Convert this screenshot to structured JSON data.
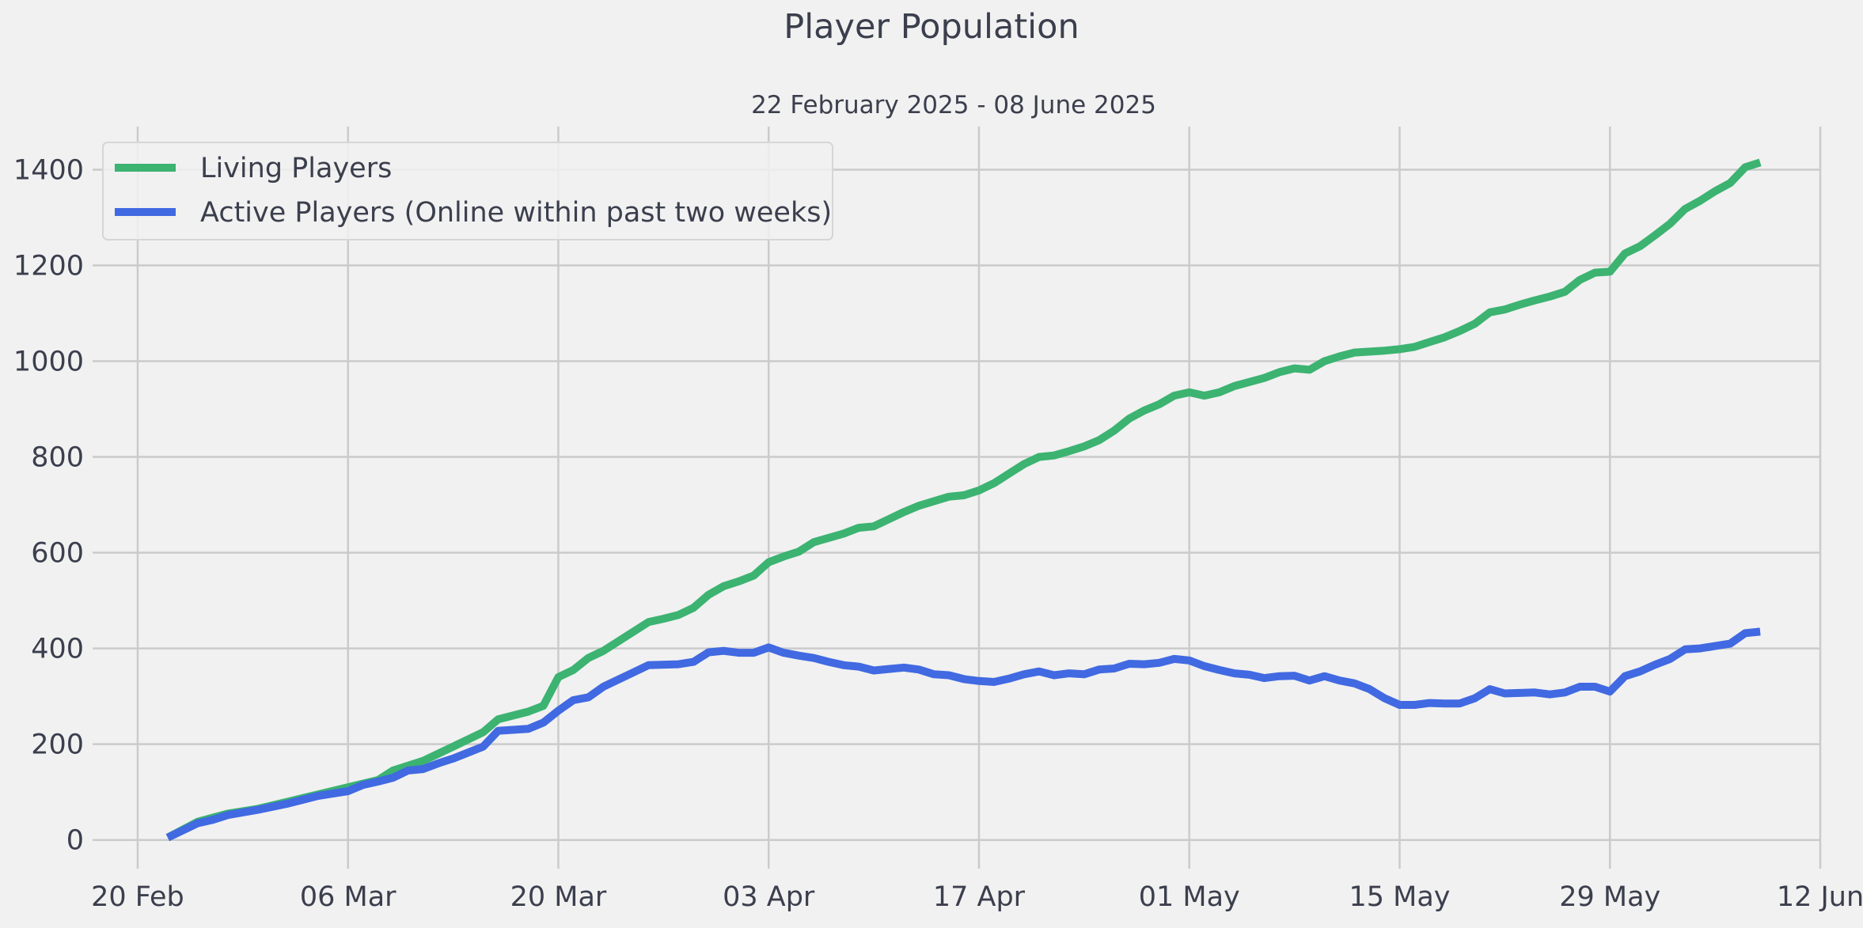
{
  "chart_data": {
    "type": "line",
    "title": "Player Population",
    "subtitle": "22 February 2025 - 08 June 2025",
    "xlabel": "",
    "ylabel": "",
    "x_axis": {
      "type": "date",
      "range": [
        "2025-02-17",
        "2025-06-12"
      ],
      "ticks": [
        {
          "date": "2025-02-20",
          "label": "20 Feb"
        },
        {
          "date": "2025-03-06",
          "label": "06 Mar"
        },
        {
          "date": "2025-03-20",
          "label": "20 Mar"
        },
        {
          "date": "2025-04-03",
          "label": "03 Apr"
        },
        {
          "date": "2025-04-17",
          "label": "17 Apr"
        },
        {
          "date": "2025-05-01",
          "label": "01 May"
        },
        {
          "date": "2025-05-15",
          "label": "15 May"
        },
        {
          "date": "2025-05-29",
          "label": "29 May"
        },
        {
          "date": "2025-06-12",
          "label": "12 Jun"
        }
      ]
    },
    "y_axis": {
      "range": [
        -60,
        1490
      ],
      "ticks": [
        {
          "value": 0,
          "label": "0"
        },
        {
          "value": 200,
          "label": "200"
        },
        {
          "value": 400,
          "label": "400"
        },
        {
          "value": 600,
          "label": "600"
        },
        {
          "value": 800,
          "label": "800"
        },
        {
          "value": 1000,
          "label": "1000"
        },
        {
          "value": 1200,
          "label": "1200"
        },
        {
          "value": 1400,
          "label": "1400"
        }
      ]
    },
    "grid": true,
    "legend_position": "top-left",
    "series": [
      {
        "name": "Living Players",
        "color": "#3cb371",
        "points": [
          [
            "2025-02-22",
            5
          ],
          [
            "2025-02-24",
            38
          ],
          [
            "2025-02-26",
            55
          ],
          [
            "2025-02-28",
            65
          ],
          [
            "2025-03-02",
            80
          ],
          [
            "2025-03-04",
            95
          ],
          [
            "2025-03-06",
            110
          ],
          [
            "2025-03-08",
            125
          ],
          [
            "2025-03-09",
            145
          ],
          [
            "2025-03-11",
            165
          ],
          [
            "2025-03-13",
            195
          ],
          [
            "2025-03-15",
            225
          ],
          [
            "2025-03-16",
            252
          ],
          [
            "2025-03-18",
            268
          ],
          [
            "2025-03-19",
            280
          ],
          [
            "2025-03-20",
            340
          ],
          [
            "2025-03-21",
            355
          ],
          [
            "2025-03-22",
            380
          ],
          [
            "2025-03-23",
            395
          ],
          [
            "2025-03-25",
            435
          ],
          [
            "2025-03-26",
            455
          ],
          [
            "2025-03-27",
            462
          ],
          [
            "2025-03-28",
            470
          ],
          [
            "2025-03-29",
            485
          ],
          [
            "2025-03-30",
            512
          ],
          [
            "2025-03-31",
            530
          ],
          [
            "2025-04-01",
            540
          ],
          [
            "2025-04-02",
            552
          ],
          [
            "2025-04-03",
            580
          ],
          [
            "2025-04-04",
            592
          ],
          [
            "2025-04-05",
            602
          ],
          [
            "2025-04-06",
            622
          ],
          [
            "2025-04-08",
            640
          ],
          [
            "2025-04-09",
            652
          ],
          [
            "2025-04-10",
            655
          ],
          [
            "2025-04-11",
            670
          ],
          [
            "2025-04-12",
            685
          ],
          [
            "2025-04-13",
            698
          ],
          [
            "2025-04-15",
            717
          ],
          [
            "2025-04-16",
            720
          ],
          [
            "2025-04-17",
            730
          ],
          [
            "2025-04-18",
            745
          ],
          [
            "2025-04-19",
            765
          ],
          [
            "2025-04-20",
            785
          ],
          [
            "2025-04-21",
            800
          ],
          [
            "2025-04-22",
            803
          ],
          [
            "2025-04-23",
            812
          ],
          [
            "2025-04-24",
            822
          ],
          [
            "2025-04-25",
            835
          ],
          [
            "2025-04-26",
            855
          ],
          [
            "2025-04-27",
            880
          ],
          [
            "2025-04-28",
            897
          ],
          [
            "2025-04-29",
            910
          ],
          [
            "2025-04-30",
            928
          ],
          [
            "2025-05-01",
            935
          ],
          [
            "2025-05-02",
            928
          ],
          [
            "2025-05-03",
            935
          ],
          [
            "2025-05-04",
            948
          ],
          [
            "2025-05-06",
            965
          ],
          [
            "2025-05-07",
            977
          ],
          [
            "2025-05-08",
            985
          ],
          [
            "2025-05-09",
            982
          ],
          [
            "2025-05-10",
            1000
          ],
          [
            "2025-05-11",
            1010
          ],
          [
            "2025-05-12",
            1018
          ],
          [
            "2025-05-14",
            1022
          ],
          [
            "2025-05-15",
            1025
          ],
          [
            "2025-05-16",
            1030
          ],
          [
            "2025-05-17",
            1040
          ],
          [
            "2025-05-18",
            1050
          ],
          [
            "2025-05-19",
            1063
          ],
          [
            "2025-05-20",
            1078
          ],
          [
            "2025-05-21",
            1102
          ],
          [
            "2025-05-22",
            1108
          ],
          [
            "2025-05-23",
            1118
          ],
          [
            "2025-05-24",
            1127
          ],
          [
            "2025-05-25",
            1135
          ],
          [
            "2025-05-26",
            1145
          ],
          [
            "2025-05-27",
            1170
          ],
          [
            "2025-05-28",
            1185
          ],
          [
            "2025-05-29",
            1187
          ],
          [
            "2025-05-30",
            1225
          ],
          [
            "2025-05-31",
            1240
          ],
          [
            "2025-06-01",
            1263
          ],
          [
            "2025-06-02",
            1287
          ],
          [
            "2025-06-03",
            1318
          ],
          [
            "2025-06-04",
            1335
          ],
          [
            "2025-06-05",
            1355
          ],
          [
            "2025-06-06",
            1372
          ],
          [
            "2025-06-07",
            1405
          ],
          [
            "2025-06-08",
            1415
          ]
        ]
      },
      {
        "name": "Active Players (Online within past two weeks)",
        "color": "#4169e1",
        "points": [
          [
            "2025-02-22",
            5
          ],
          [
            "2025-02-24",
            35
          ],
          [
            "2025-02-25",
            42
          ],
          [
            "2025-02-26",
            52
          ],
          [
            "2025-02-28",
            63
          ],
          [
            "2025-03-02",
            76
          ],
          [
            "2025-03-04",
            92
          ],
          [
            "2025-03-05",
            97
          ],
          [
            "2025-03-06",
            102
          ],
          [
            "2025-03-07",
            115
          ],
          [
            "2025-03-08",
            122
          ],
          [
            "2025-03-09",
            130
          ],
          [
            "2025-03-10",
            145
          ],
          [
            "2025-03-11",
            148
          ],
          [
            "2025-03-12",
            160
          ],
          [
            "2025-03-13",
            170
          ],
          [
            "2025-03-15",
            195
          ],
          [
            "2025-03-16",
            228
          ],
          [
            "2025-03-18",
            232
          ],
          [
            "2025-03-19",
            245
          ],
          [
            "2025-03-20",
            270
          ],
          [
            "2025-03-21",
            292
          ],
          [
            "2025-03-22",
            298
          ],
          [
            "2025-03-23",
            320
          ],
          [
            "2025-03-25",
            350
          ],
          [
            "2025-03-26",
            365
          ],
          [
            "2025-03-28",
            367
          ],
          [
            "2025-03-29",
            372
          ],
          [
            "2025-03-30",
            392
          ],
          [
            "2025-03-31",
            395
          ],
          [
            "2025-04-01",
            391
          ],
          [
            "2025-04-02",
            391
          ],
          [
            "2025-04-03",
            402
          ],
          [
            "2025-04-04",
            391
          ],
          [
            "2025-04-05",
            385
          ],
          [
            "2025-04-06",
            380
          ],
          [
            "2025-04-07",
            372
          ],
          [
            "2025-04-08",
            365
          ],
          [
            "2025-04-09",
            362
          ],
          [
            "2025-04-10",
            354
          ],
          [
            "2025-04-11",
            357
          ],
          [
            "2025-04-12",
            360
          ],
          [
            "2025-04-13",
            356
          ],
          [
            "2025-04-14",
            346
          ],
          [
            "2025-04-15",
            344
          ],
          [
            "2025-04-16",
            336
          ],
          [
            "2025-04-17",
            332
          ],
          [
            "2025-04-18",
            330
          ],
          [
            "2025-04-19",
            337
          ],
          [
            "2025-04-20",
            346
          ],
          [
            "2025-04-21",
            352
          ],
          [
            "2025-04-22",
            344
          ],
          [
            "2025-04-23",
            348
          ],
          [
            "2025-04-24",
            346
          ],
          [
            "2025-04-25",
            356
          ],
          [
            "2025-04-26",
            358
          ],
          [
            "2025-04-27",
            368
          ],
          [
            "2025-04-28",
            367
          ],
          [
            "2025-04-29",
            370
          ],
          [
            "2025-04-30",
            378
          ],
          [
            "2025-05-01",
            375
          ],
          [
            "2025-05-02",
            363
          ],
          [
            "2025-05-03",
            355
          ],
          [
            "2025-05-04",
            348
          ],
          [
            "2025-05-05",
            345
          ],
          [
            "2025-05-06",
            338
          ],
          [
            "2025-05-07",
            342
          ],
          [
            "2025-05-08",
            343
          ],
          [
            "2025-05-09",
            333
          ],
          [
            "2025-05-10",
            342
          ],
          [
            "2025-05-11",
            333
          ],
          [
            "2025-05-12",
            327
          ],
          [
            "2025-05-13",
            315
          ],
          [
            "2025-05-14",
            296
          ],
          [
            "2025-05-15",
            282
          ],
          [
            "2025-05-16",
            282
          ],
          [
            "2025-05-17",
            286
          ],
          [
            "2025-05-18",
            285
          ],
          [
            "2025-05-19",
            285
          ],
          [
            "2025-05-20",
            296
          ],
          [
            "2025-05-21",
            315
          ],
          [
            "2025-05-22",
            306
          ],
          [
            "2025-05-23",
            307
          ],
          [
            "2025-05-24",
            308
          ],
          [
            "2025-05-25",
            304
          ],
          [
            "2025-05-26",
            308
          ],
          [
            "2025-05-27",
            320
          ],
          [
            "2025-05-28",
            320
          ],
          [
            "2025-05-29",
            310
          ],
          [
            "2025-05-30",
            342
          ],
          [
            "2025-05-31",
            352
          ],
          [
            "2025-06-01",
            366
          ],
          [
            "2025-06-02",
            378
          ],
          [
            "2025-06-03",
            398
          ],
          [
            "2025-06-04",
            400
          ],
          [
            "2025-06-05",
            405
          ],
          [
            "2025-06-06",
            410
          ],
          [
            "2025-06-07",
            432
          ],
          [
            "2025-06-08",
            435
          ]
        ]
      }
    ]
  }
}
